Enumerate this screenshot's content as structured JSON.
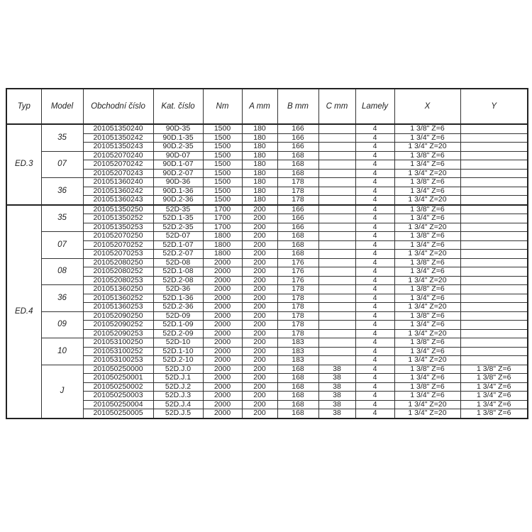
{
  "headers": [
    "Typ",
    "Model",
    "Obchodní číslo",
    "Kat. číslo",
    "Nm",
    "A mm",
    "B mm",
    "C mm",
    "Lamely",
    "X",
    "Y"
  ],
  "groups": [
    {
      "typ": "ED.3",
      "models": [
        {
          "model": "35",
          "rows": [
            [
              "201051350240",
              "90D-35",
              "1500",
              "180",
              "166",
              "",
              "4",
              "1 3/8\" Z=6",
              ""
            ],
            [
              "201051350242",
              "90D.1-35",
              "1500",
              "180",
              "166",
              "",
              "4",
              "1 3/4\" Z=6",
              ""
            ],
            [
              "201051350243",
              "90D.2-35",
              "1500",
              "180",
              "166",
              "",
              "4",
              "1 3/4\" Z=20",
              ""
            ]
          ]
        },
        {
          "model": "07",
          "rows": [
            [
              "201052070240",
              "90D-07",
              "1500",
              "180",
              "168",
              "",
              "4",
              "1 3/8\" Z=6",
              ""
            ],
            [
              "201052070242",
              "90D.1-07",
              "1500",
              "180",
              "168",
              "",
              "4",
              "1 3/4\" Z=6",
              ""
            ],
            [
              "201052070243",
              "90D.2-07",
              "1500",
              "180",
              "168",
              "",
              "4",
              "1 3/4\" Z=20",
              ""
            ]
          ]
        },
        {
          "model": "36",
          "rows": [
            [
              "201051360240",
              "90D-36",
              "1500",
              "180",
              "178",
              "",
              "4",
              "1 3/8\" Z=6",
              ""
            ],
            [
              "201051360242",
              "90D.1-36",
              "1500",
              "180",
              "178",
              "",
              "4",
              "1 3/4\" Z=6",
              ""
            ],
            [
              "201051360243",
              "90D.2-36",
              "1500",
              "180",
              "178",
              "",
              "4",
              "1 3/4\" Z=20",
              ""
            ]
          ]
        }
      ]
    },
    {
      "typ": "ED.4",
      "models": [
        {
          "model": "35",
          "rows": [
            [
              "201051350250",
              "52D-35",
              "1700",
              "200",
              "166",
              "",
              "4",
              "1 3/8\" Z=6",
              ""
            ],
            [
              "201051350252",
              "52D.1-35",
              "1700",
              "200",
              "166",
              "",
              "4",
              "1 3/4\" Z=6",
              ""
            ],
            [
              "201051350253",
              "52D.2-35",
              "1700",
              "200",
              "166",
              "",
              "4",
              "1 3/4\" Z=20",
              ""
            ]
          ]
        },
        {
          "model": "07",
          "rows": [
            [
              "201052070250",
              "52D-07",
              "1800",
              "200",
              "168",
              "",
              "4",
              "1 3/8\" Z=6",
              ""
            ],
            [
              "201052070252",
              "52D.1-07",
              "1800",
              "200",
              "168",
              "",
              "4",
              "1 3/4\" Z=6",
              ""
            ],
            [
              "201052070253",
              "52D.2-07",
              "1800",
              "200",
              "168",
              "",
              "4",
              "1 3/4\" Z=20",
              ""
            ]
          ]
        },
        {
          "model": "08",
          "rows": [
            [
              "201052080250",
              "52D-08",
              "2000",
              "200",
              "176",
              "",
              "4",
              "1 3/8\" Z=6",
              ""
            ],
            [
              "201052080252",
              "52D.1-08",
              "2000",
              "200",
              "176",
              "",
              "4",
              "1 3/4\" Z=6",
              ""
            ],
            [
              "201052080253",
              "52D.2-08",
              "2000",
              "200",
              "176",
              "",
              "4",
              "1 3/4\" Z=20",
              ""
            ]
          ]
        },
        {
          "model": "36",
          "rows": [
            [
              "201051360250",
              "52D-36",
              "2000",
              "200",
              "178",
              "",
              "4",
              "1 3/8\" Z=6",
              ""
            ],
            [
              "201051360252",
              "52D.1-36",
              "2000",
              "200",
              "178",
              "",
              "4",
              "1 3/4\" Z=6",
              ""
            ],
            [
              "201051360253",
              "52D.2-36",
              "2000",
              "200",
              "178",
              "",
              "4",
              "1 3/4\" Z=20",
              ""
            ]
          ]
        },
        {
          "model": "09",
          "rows": [
            [
              "201052090250",
              "52D-09",
              "2000",
              "200",
              "178",
              "",
              "4",
              "1 3/8\" Z=6",
              ""
            ],
            [
              "201052090252",
              "52D.1-09",
              "2000",
              "200",
              "178",
              "",
              "4",
              "1 3/4\" Z=6",
              ""
            ],
            [
              "201052090253",
              "52D.2-09",
              "2000",
              "200",
              "178",
              "",
              "4",
              "1 3/4\" Z=20",
              ""
            ]
          ]
        },
        {
          "model": "10",
          "rows": [
            [
              "201053100250",
              "52D-10",
              "2000",
              "200",
              "183",
              "",
              "4",
              "1 3/8\" Z=6",
              ""
            ],
            [
              "201053100252",
              "52D.1-10",
              "2000",
              "200",
              "183",
              "",
              "4",
              "1 3/4\" Z=6",
              ""
            ],
            [
              "201053100253",
              "52D.2-10",
              "2000",
              "200",
              "183",
              "",
              "4",
              "1 3/4\" Z=20",
              ""
            ]
          ]
        },
        {
          "model": "J",
          "rows": [
            [
              "201050250000",
              "52D.J.0",
              "2000",
              "200",
              "168",
              "38",
              "4",
              "1 3/8\" Z=6",
              "1 3/8\" Z=6"
            ],
            [
              "201050250001",
              "52D.J.1",
              "2000",
              "200",
              "168",
              "38",
              "4",
              "1 3/4\" Z=6",
              "1 3/8\" Z=6"
            ],
            [
              "201050250002",
              "52D.J.2",
              "2000",
              "200",
              "168",
              "38",
              "4",
              "1 3/8\" Z=6",
              "1 3/4\" Z=6"
            ],
            [
              "201050250003",
              "52D.J.3",
              "2000",
              "200",
              "168",
              "38",
              "4",
              "1 3/4\" Z=6",
              "1 3/4\" Z=6"
            ],
            [
              "201050250004",
              "52D.J.4",
              "2000",
              "200",
              "168",
              "38",
              "4",
              "1 3/4\" Z=20",
              "1 3/4\" Z=6"
            ],
            [
              "201050250005",
              "52D.J.5",
              "2000",
              "200",
              "168",
              "38",
              "4",
              "1 3/4\" Z=20",
              "1 3/8\" Z=6"
            ]
          ]
        }
      ]
    }
  ]
}
